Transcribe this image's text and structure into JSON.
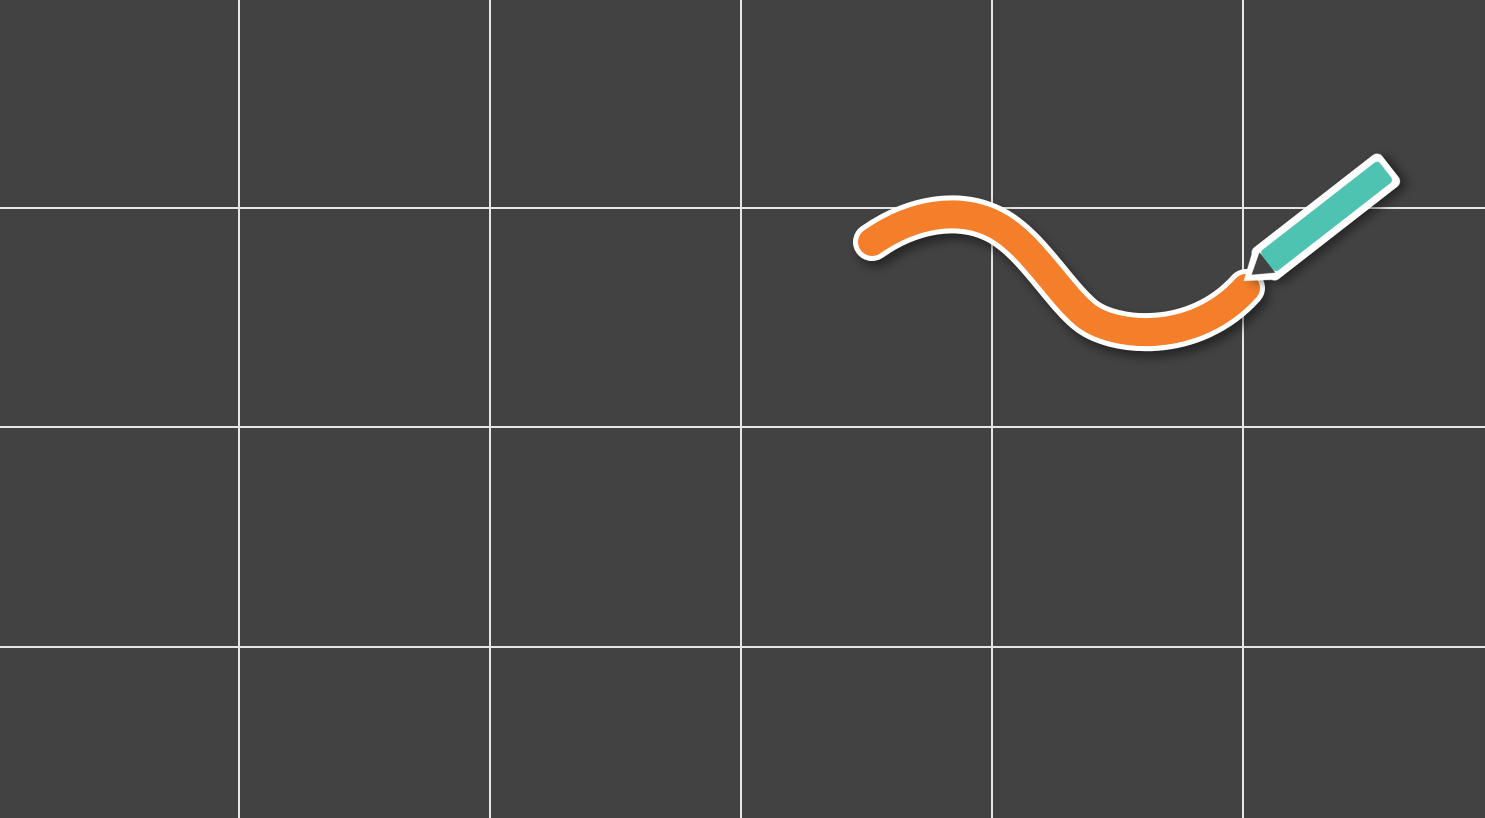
{
  "canvas": {
    "background_color": "#424242",
    "grid_color": "#e6e6e6",
    "grid": {
      "columns": 6,
      "rows": 4,
      "visible": true
    }
  },
  "stroke": {
    "color": "#f47e29",
    "outline_color": "#ffffff"
  },
  "pencil": {
    "icon": "pencil-icon",
    "body_color": "#4fc3b2",
    "tip_color": "#424242",
    "outline_color": "#ffffff"
  }
}
